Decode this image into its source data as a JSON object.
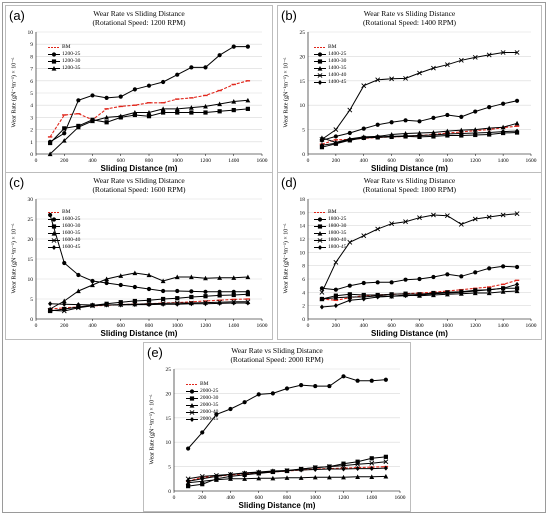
{
  "figure": {
    "panels": [
      {
        "letter": "(a)",
        "title_line1": "Wear Rate vs Sliding Distance",
        "title_line2": "(Rotational Speed: 1200 RPM)",
        "xlabel": "Sliding Distance (m)",
        "ylabel": "Wear Rate (gN⁻¹m⁻¹) × 10⁻⁶"
      },
      {
        "letter": "(b)",
        "title_line1": "Wear Rate vs Sliding Distance",
        "title_line2": "(Rotational Speed: 1400 RPM)",
        "xlabel": "Sliding Distance (m)",
        "ylabel": "Wear Rate (gN⁻¹m⁻¹) × 10⁻⁶"
      },
      {
        "letter": "(c)",
        "title_line1": "Wear Rate vs Sliding Distance",
        "title_line2": "(Rotational Speed: 1600 RPM)",
        "xlabel": "Sliding Distance (m)",
        "ylabel": "Wear Rate (gN⁻¹m⁻¹) × 10⁻⁶"
      },
      {
        "letter": "(d)",
        "title_line1": "Wear Rate vs Sliding Distance",
        "title_line2": "(Rotational Speed: 1800 RPM)",
        "xlabel": "Sliding Distance (m)",
        "ylabel": "Wear Rate (gN⁻¹m⁻¹) × 10⁻⁶"
      },
      {
        "letter": "(e)",
        "title_line1": "Wear Rate vs Sliding Distance",
        "title_line2": "(Rotational Speed: 2000 RPM)",
        "xlabel": "Sliding Distance (m)",
        "ylabel": "Wear Rate (gN⁻¹m⁻¹) × 10⁻⁶"
      }
    ]
  },
  "chart_data": [
    {
      "type": "line",
      "xlim": [
        0,
        1600
      ],
      "xticks": [
        0,
        200,
        400,
        600,
        800,
        1000,
        1200,
        1400,
        1600
      ],
      "ylim": [
        0,
        10
      ],
      "yticks": [
        0,
        1,
        2,
        3,
        4,
        5,
        6,
        7,
        8,
        9,
        10
      ],
      "x": [
        100,
        200,
        300,
        400,
        500,
        600,
        700,
        800,
        900,
        1000,
        1100,
        1200,
        1300,
        1400,
        1500
      ],
      "series": [
        {
          "name": "BM",
          "marker": "dash",
          "color": "#e0261b",
          "dashed": true,
          "values": [
            1.4,
            3.2,
            3.3,
            2.8,
            3.7,
            3.9,
            4.0,
            4.2,
            4.2,
            4.5,
            4.6,
            4.8,
            5.2,
            5.7,
            6.0
          ]
        },
        {
          "name": "1200-25",
          "marker": "circle",
          "color": "#000000",
          "values": [
            1.0,
            1.7,
            4.4,
            4.8,
            4.6,
            4.7,
            5.3,
            5.6,
            5.9,
            6.5,
            7.1,
            7.1,
            8.1,
            8.8,
            8.8
          ]
        },
        {
          "name": "1200-30",
          "marker": "square",
          "color": "#000000",
          "values": [
            0.9,
            2.1,
            2.3,
            2.8,
            2.6,
            3.0,
            3.2,
            3.1,
            3.4,
            3.4,
            3.4,
            3.4,
            3.5,
            3.6,
            3.7
          ]
        },
        {
          "name": "1200-35",
          "marker": "triangle",
          "color": "#000000",
          "values": [
            0.0,
            1.1,
            2.2,
            2.7,
            3.0,
            3.1,
            3.4,
            3.4,
            3.7,
            3.7,
            3.8,
            3.9,
            4.1,
            4.3,
            4.4
          ]
        }
      ]
    },
    {
      "type": "line",
      "xlim": [
        0,
        1600
      ],
      "xticks": [
        0,
        200,
        400,
        600,
        800,
        1000,
        1200,
        1400,
        1600
      ],
      "ylim": [
        0,
        25
      ],
      "yticks": [
        0,
        5,
        10,
        15,
        20,
        25
      ],
      "x": [
        100,
        200,
        300,
        400,
        500,
        600,
        700,
        800,
        900,
        1000,
        1100,
        1200,
        1300,
        1400,
        1500
      ],
      "series": [
        {
          "name": "BM",
          "marker": "dash",
          "color": "#e0261b",
          "dashed": true,
          "values": [
            2.0,
            2.9,
            3.0,
            3.2,
            3.4,
            3.5,
            3.6,
            3.8,
            4.0,
            4.3,
            4.5,
            4.8,
            5.0,
            5.4,
            5.7
          ]
        },
        {
          "name": "1400-25",
          "marker": "circle",
          "color": "#000000",
          "values": [
            2.8,
            3.6,
            4.3,
            5.2,
            6.0,
            6.5,
            6.9,
            6.7,
            7.4,
            8.0,
            7.6,
            8.7,
            9.6,
            10.3,
            10.9
          ]
        },
        {
          "name": "1400-30",
          "marker": "square",
          "color": "#000000",
          "values": [
            1.4,
            2.1,
            2.8,
            3.3,
            3.4,
            3.5,
            3.6,
            3.5,
            3.6,
            3.8,
            3.8,
            3.9,
            4.0,
            4.3,
            4.4
          ]
        },
        {
          "name": "1400-35",
          "marker": "triangle",
          "color": "#000000",
          "values": [
            3.3,
            2.4,
            3.1,
            3.5,
            3.6,
            4.0,
            4.2,
            4.3,
            4.4,
            4.7,
            4.9,
            5.0,
            5.3,
            5.5,
            6.3
          ]
        },
        {
          "name": "1400-40",
          "marker": "x",
          "color": "#000000",
          "values": [
            3.0,
            5.0,
            9.0,
            14.0,
            15.2,
            15.4,
            15.5,
            16.6,
            17.6,
            18.3,
            19.2,
            19.8,
            20.3,
            20.8,
            20.8
          ]
        },
        {
          "name": "1400-45",
          "marker": "diamond",
          "color": "#000000",
          "values": [
            1.8,
            2.2,
            3.0,
            3.3,
            3.5,
            3.6,
            3.7,
            3.8,
            3.9,
            4.1,
            4.2,
            4.3,
            4.4,
            4.6,
            4.7
          ]
        }
      ]
    },
    {
      "type": "line",
      "xlim": [
        0,
        1600
      ],
      "xticks": [
        0,
        200,
        400,
        600,
        800,
        1000,
        1200,
        1400,
        1600
      ],
      "ylim": [
        0,
        30
      ],
      "yticks": [
        0,
        5,
        10,
        15,
        20,
        25,
        30
      ],
      "x": [
        100,
        200,
        300,
        400,
        500,
        600,
        700,
        800,
        900,
        1000,
        1100,
        1200,
        1300,
        1400,
        1500
      ],
      "series": [
        {
          "name": "BM",
          "marker": "dash",
          "color": "#e0261b",
          "dashed": true,
          "values": [
            2.5,
            2.8,
            3.0,
            3.3,
            3.4,
            3.6,
            3.7,
            3.8,
            4.0,
            4.1,
            4.3,
            4.5,
            4.7,
            4.9,
            5.0
          ]
        },
        {
          "name": "1600-25",
          "marker": "circle",
          "color": "#000000",
          "values": [
            26.0,
            14.0,
            11.0,
            9.5,
            9.0,
            8.5,
            8.0,
            7.5,
            7.0,
            7.0,
            6.9,
            6.8,
            6.8,
            6.8,
            6.8
          ]
        },
        {
          "name": "1600-30",
          "marker": "square",
          "color": "#000000",
          "values": [
            2.0,
            2.5,
            3.0,
            3.4,
            3.8,
            4.2,
            4.5,
            4.7,
            5.0,
            5.2,
            5.5,
            5.7,
            5.9,
            6.0,
            6.2
          ]
        },
        {
          "name": "1600-35",
          "marker": "triangle",
          "color": "#000000",
          "values": [
            2.5,
            4.5,
            7.0,
            8.5,
            10.0,
            10.8,
            11.5,
            11.0,
            9.5,
            10.5,
            10.5,
            10.2,
            10.3,
            10.3,
            10.5
          ]
        },
        {
          "name": "1600-40",
          "marker": "x",
          "color": "#000000",
          "values": [
            2.2,
            2.0,
            2.8,
            3.3,
            3.5,
            3.6,
            3.7,
            3.8,
            3.9,
            4.0,
            4.0,
            4.1,
            4.2,
            4.3,
            4.3
          ]
        },
        {
          "name": "1600-45",
          "marker": "diamond",
          "color": "#000000",
          "values": [
            3.8,
            3.7,
            3.6,
            3.5,
            3.5,
            3.5,
            3.6,
            3.6,
            3.7,
            3.7,
            3.8,
            3.8,
            3.9,
            4.0,
            4.0
          ]
        }
      ]
    },
    {
      "type": "line",
      "xlim": [
        0,
        1600
      ],
      "xticks": [
        0,
        200,
        400,
        600,
        800,
        1000,
        1200,
        1400,
        1600
      ],
      "ylim": [
        0,
        18
      ],
      "yticks": [
        0,
        2,
        4,
        6,
        8,
        10,
        12,
        14,
        16,
        18
      ],
      "x": [
        100,
        200,
        300,
        400,
        500,
        600,
        700,
        800,
        900,
        1000,
        1100,
        1200,
        1300,
        1400,
        1500
      ],
      "series": [
        {
          "name": "BM",
          "marker": "dash",
          "color": "#e0261b",
          "dashed": true,
          "values": [
            3.0,
            2.8,
            3.2,
            3.5,
            3.6,
            3.7,
            3.8,
            3.9,
            4.0,
            4.2,
            4.4,
            4.6,
            4.8,
            5.2,
            5.8
          ]
        },
        {
          "name": "1800-25",
          "marker": "circle",
          "color": "#000000",
          "values": [
            4.6,
            4.4,
            5.0,
            5.4,
            5.5,
            5.5,
            5.9,
            6.0,
            6.3,
            6.7,
            6.4,
            7.0,
            7.6,
            7.9,
            7.8
          ]
        },
        {
          "name": "1800-30",
          "marker": "square",
          "color": "#000000",
          "values": [
            3.0,
            3.5,
            3.7,
            3.6,
            3.6,
            3.7,
            3.8,
            3.7,
            3.9,
            4.0,
            4.1,
            4.3,
            4.4,
            4.6,
            4.6
          ]
        },
        {
          "name": "1800-35",
          "marker": "triangle",
          "color": "#000000",
          "values": [
            3.0,
            3.2,
            3.3,
            3.3,
            3.5,
            3.4,
            3.6,
            3.5,
            3.6,
            3.7,
            3.8,
            3.9,
            3.9,
            4.1,
            4.2
          ]
        },
        {
          "name": "1800-40",
          "marker": "x",
          "color": "#000000",
          "values": [
            4.0,
            8.5,
            11.5,
            12.5,
            13.5,
            14.3,
            14.6,
            15.2,
            15.6,
            15.5,
            14.2,
            15.0,
            15.3,
            15.6,
            15.8
          ]
        },
        {
          "name": "1800-45",
          "marker": "diamond",
          "color": "#000000",
          "values": [
            1.8,
            2.0,
            2.8,
            3.0,
            3.3,
            3.4,
            3.5,
            3.6,
            3.8,
            3.9,
            4.0,
            4.2,
            4.4,
            4.6,
            5.2
          ]
        }
      ]
    },
    {
      "type": "line",
      "xlim": [
        0,
        1600
      ],
      "xticks": [
        0,
        200,
        400,
        600,
        800,
        1000,
        1200,
        1400,
        1600
      ],
      "ylim": [
        0,
        25
      ],
      "yticks": [
        0,
        5,
        10,
        15,
        20,
        25
      ],
      "x": [
        100,
        200,
        300,
        400,
        500,
        600,
        700,
        800,
        900,
        1000,
        1100,
        1200,
        1300,
        1400,
        1500
      ],
      "series": [
        {
          "name": "BM",
          "marker": "dash",
          "color": "#e0261b",
          "dashed": true,
          "values": [
            2.0,
            2.8,
            3.0,
            3.3,
            3.5,
            3.7,
            3.9,
            4.1,
            4.3,
            4.5,
            4.6,
            4.7,
            4.8,
            4.9,
            5.0
          ]
        },
        {
          "name": "2000-25",
          "marker": "circle",
          "color": "#000000",
          "values": [
            8.7,
            12.0,
            15.7,
            16.8,
            18.2,
            19.8,
            20.0,
            21.0,
            21.7,
            21.5,
            21.5,
            23.5,
            22.6,
            22.6,
            22.8
          ]
        },
        {
          "name": "2000-30",
          "marker": "square",
          "color": "#000000",
          "values": [
            1.0,
            1.4,
            2.5,
            3.0,
            3.3,
            3.6,
            3.9,
            4.1,
            4.5,
            4.8,
            5.0,
            5.6,
            6.0,
            6.7,
            7.0
          ]
        },
        {
          "name": "2000-35",
          "marker": "triangle",
          "color": "#000000",
          "values": [
            1.7,
            2.0,
            2.3,
            2.5,
            2.5,
            2.6,
            2.6,
            2.7,
            2.7,
            2.8,
            2.8,
            2.8,
            2.9,
            2.9,
            3.0
          ]
        },
        {
          "name": "2000-40",
          "marker": "x",
          "color": "#000000",
          "values": [
            2.5,
            3.0,
            3.2,
            3.4,
            3.6,
            3.8,
            4.0,
            4.2,
            4.5,
            4.8,
            5.0,
            5.2,
            5.5,
            5.7,
            6.0
          ]
        },
        {
          "name": "2000-45",
          "marker": "diamond",
          "color": "#000000",
          "values": [
            2.0,
            2.5,
            3.0,
            3.4,
            3.7,
            3.9,
            4.1,
            4.2,
            4.3,
            4.4,
            4.5,
            4.5,
            4.6,
            4.6,
            4.7
          ]
        }
      ]
    }
  ]
}
